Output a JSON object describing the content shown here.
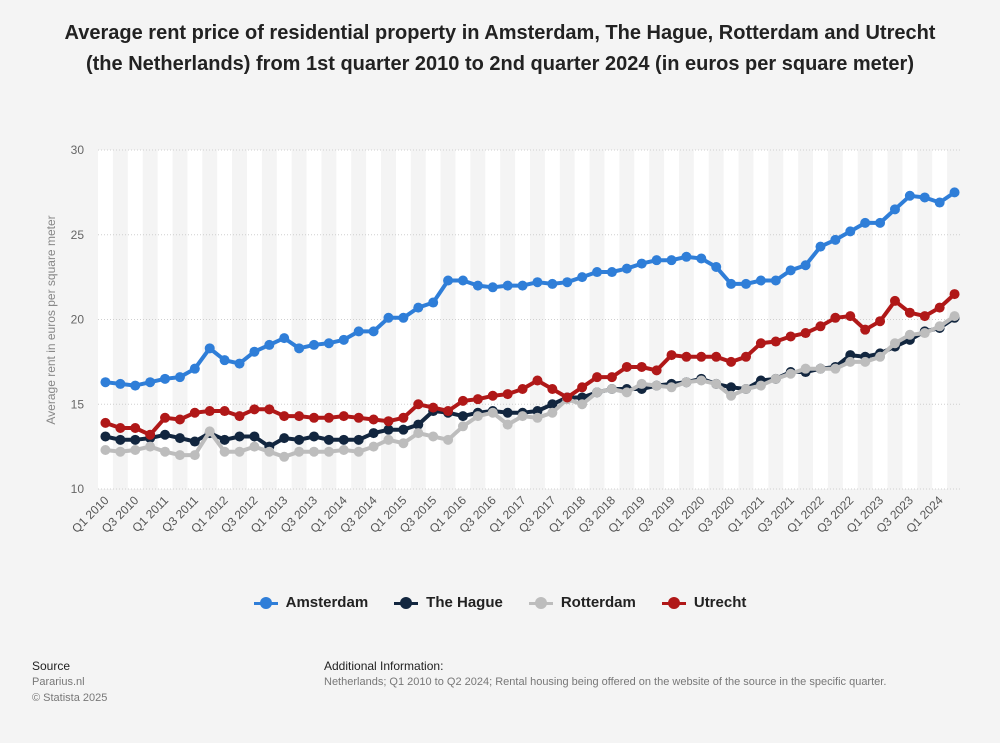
{
  "title": "Average rent price of residential property in Amsterdam, The Hague, Rotterdam and Utrecht (the Netherlands) from 1st quarter 2010 to 2nd quarter 2024 (in euros per square meter)",
  "source": {
    "heading": "Source",
    "lines": [
      "Pararius.nl",
      "© Statista 2025"
    ]
  },
  "additional_info": {
    "heading": "Additional Information:",
    "text": "Netherlands; Q1 2010 to Q2 2024; Rental housing being offered on the website of the source in the specific quarter."
  },
  "chart_data": {
    "type": "line",
    "title": "Average rent price of residential property in Amsterdam, The Hague, Rotterdam and Utrecht (the Netherlands) from 1st quarter 2010 to 2nd quarter 2024 (in euros per square meter)",
    "xlabel": "",
    "ylabel": "Average rent in euros per square meter",
    "ylim": [
      10,
      30
    ],
    "yticks": [
      10,
      15,
      20,
      25,
      30
    ],
    "grid": true,
    "legend_position": "bottom",
    "x": [
      "Q1 2010",
      "Q2 2010",
      "Q3 2010",
      "Q4 2010",
      "Q1 2011",
      "Q2 2011",
      "Q3 2011",
      "Q4 2011",
      "Q1 2012",
      "Q2 2012",
      "Q3 2012",
      "Q4 2012",
      "Q1 2013",
      "Q2 2013",
      "Q3 2013",
      "Q4 2013",
      "Q1 2014",
      "Q2 2014",
      "Q3 2014",
      "Q4 2014",
      "Q1 2015",
      "Q2 2015",
      "Q3 2015",
      "Q4 2015",
      "Q1 2016",
      "Q2 2016",
      "Q3 2016",
      "Q4 2016",
      "Q1 2017",
      "Q2 2017",
      "Q3 2017",
      "Q4 2017",
      "Q1 2018",
      "Q2 2018",
      "Q3 2018",
      "Q4 2018",
      "Q1 2019",
      "Q2 2019",
      "Q3 2019",
      "Q4 2019",
      "Q1 2020",
      "Q2 2020",
      "Q3 2020",
      "Q4 2020",
      "Q1 2021",
      "Q2 2021",
      "Q3 2021",
      "Q4 2021",
      "Q1 2022",
      "Q2 2022",
      "Q3 2022",
      "Q4 2022",
      "Q1 2023",
      "Q2 2023",
      "Q3 2023",
      "Q4 2023",
      "Q1 2024",
      "Q2 2024"
    ],
    "tick_labels": [
      "Q1 2010",
      "Q3 2010",
      "Q1 2011",
      "Q3 2011",
      "Q1 2012",
      "Q3 2012",
      "Q1 2013",
      "Q3 2013",
      "Q1 2014",
      "Q3 2014",
      "Q1 2015",
      "Q3 2015",
      "Q1 2016",
      "Q3 2016",
      "Q1 2017",
      "Q3 2017",
      "Q1 2018",
      "Q3 2018",
      "Q1 2019",
      "Q3 2019",
      "Q1 2020",
      "Q3 2020",
      "Q1 2021",
      "Q3 2021",
      "Q1 2022",
      "Q3 2022",
      "Q1 2023",
      "Q3 2023",
      "Q1 2024"
    ],
    "series": [
      {
        "name": "Amsterdam",
        "color": "#2f7ed8",
        "values": [
          16.3,
          16.2,
          16.1,
          16.3,
          16.5,
          16.6,
          17.1,
          18.3,
          17.6,
          17.4,
          18.1,
          18.5,
          18.9,
          18.3,
          18.5,
          18.6,
          18.8,
          19.3,
          19.3,
          20.1,
          20.1,
          20.7,
          21.0,
          22.3,
          22.3,
          22.0,
          21.9,
          22.0,
          22.0,
          22.2,
          22.1,
          22.2,
          22.5,
          22.8,
          22.8,
          23.0,
          23.3,
          23.5,
          23.5,
          23.7,
          23.6,
          23.1,
          22.1,
          22.1,
          22.3,
          22.3,
          22.9,
          23.2,
          24.3,
          24.7,
          25.2,
          25.7,
          25.7,
          26.5,
          27.3,
          27.2,
          26.9,
          27.5
        ]
      },
      {
        "name": "The Hague",
        "color": "#12263f",
        "values": [
          13.1,
          12.9,
          12.9,
          13.0,
          13.2,
          13.0,
          12.8,
          13.3,
          12.9,
          13.1,
          13.1,
          12.5,
          13.0,
          12.9,
          13.1,
          12.9,
          12.9,
          12.9,
          13.3,
          13.5,
          13.5,
          13.8,
          14.6,
          14.5,
          14.3,
          14.5,
          14.6,
          14.5,
          14.5,
          14.6,
          15.0,
          15.4,
          15.4,
          15.7,
          15.9,
          15.9,
          15.9,
          16.1,
          16.2,
          16.3,
          16.5,
          16.2,
          16.0,
          15.9,
          16.4,
          16.5,
          16.9,
          16.9,
          17.1,
          17.2,
          17.9,
          17.8,
          18.0,
          18.4,
          18.8,
          19.3,
          19.5,
          20.1
        ]
      },
      {
        "name": "Rotterdam",
        "color": "#bdbdbd",
        "values": [
          12.3,
          12.2,
          12.3,
          12.5,
          12.2,
          12.0,
          12.0,
          13.4,
          12.2,
          12.2,
          12.5,
          12.2,
          11.9,
          12.2,
          12.2,
          12.2,
          12.3,
          12.2,
          12.5,
          12.9,
          12.7,
          13.3,
          13.1,
          12.9,
          13.7,
          14.3,
          14.5,
          13.8,
          14.3,
          14.2,
          14.5,
          15.3,
          15.0,
          15.7,
          15.9,
          15.7,
          16.2,
          16.1,
          16.0,
          16.3,
          16.4,
          16.2,
          15.5,
          15.9,
          16.1,
          16.5,
          16.8,
          17.1,
          17.1,
          17.1,
          17.5,
          17.5,
          17.8,
          18.6,
          19.1,
          19.2,
          19.6,
          20.2
        ]
      },
      {
        "name": "Utrecht",
        "color": "#b01818",
        "values": [
          13.9,
          13.6,
          13.6,
          13.2,
          14.2,
          14.1,
          14.5,
          14.6,
          14.6,
          14.3,
          14.7,
          14.7,
          14.3,
          14.3,
          14.2,
          14.2,
          14.3,
          14.2,
          14.1,
          14.0,
          14.2,
          15.0,
          14.8,
          14.6,
          15.2,
          15.3,
          15.5,
          15.6,
          15.9,
          16.4,
          15.9,
          15.4,
          16.0,
          16.6,
          16.6,
          17.2,
          17.2,
          17.0,
          17.9,
          17.8,
          17.8,
          17.8,
          17.5,
          17.8,
          18.6,
          18.7,
          19.0,
          19.2,
          19.6,
          20.1,
          20.2,
          19.4,
          19.9,
          21.1,
          20.4,
          20.2,
          20.7,
          21.5
        ]
      }
    ]
  }
}
